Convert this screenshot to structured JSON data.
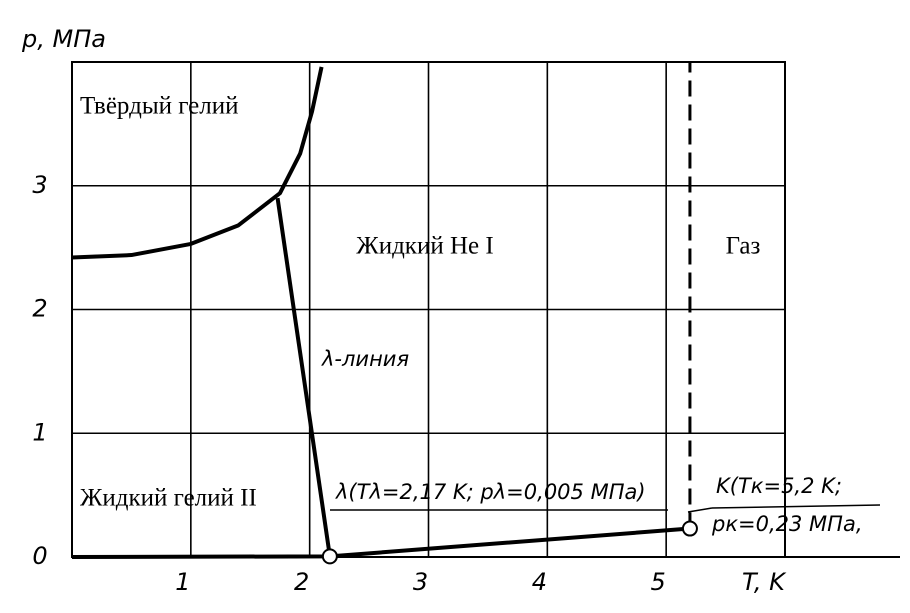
{
  "chart_data": {
    "type": "line",
    "x_label": "T, K",
    "y_label": "p, МПа",
    "xlim": [
      0,
      6
    ],
    "ylim": [
      0,
      4
    ],
    "xticks": [
      1,
      2,
      3,
      4,
      5
    ],
    "yticks": [
      0,
      1,
      2,
      3
    ],
    "grid": true,
    "series": [
      {
        "color": "#000000",
        "style": "solid",
        "x": [
          0,
          0.5,
          1,
          1.4,
          1.75,
          1.92,
          2.02,
          2.1
        ],
        "values": [
          2.42,
          2.44,
          2.53,
          2.68,
          2.94,
          3.26,
          3.6,
          3.96
        ]
      },
      {
        "color": "#000000",
        "style": "solid",
        "x": [
          1.73,
          2.17
        ],
        "values": [
          2.9,
          0.005
        ]
      },
      {
        "color": "#000000",
        "style": "solid",
        "x": [
          0,
          2.17,
          5.2
        ],
        "values": [
          0,
          0.005,
          0.23
        ]
      },
      {
        "color": "#000000",
        "style": "dashed",
        "x": [
          5.2,
          5.2
        ],
        "values": [
          0.23,
          4
        ]
      },
      {
        "color": "#000000",
        "style": "marker",
        "x": [
          2.17,
          5.2
        ],
        "values": [
          0.005,
          0.23
        ]
      }
    ],
    "annotations": [
      "Твёрдый гелий",
      "Жидкий He I",
      "Газ",
      "Жидкий гелий II",
      "λ-линия",
      "λ(Tλ=2,17 K; pλ=0,005 МПа)",
      "K(Tк=5,2 K;",
      "pк=0,23 МПа,"
    ]
  }
}
